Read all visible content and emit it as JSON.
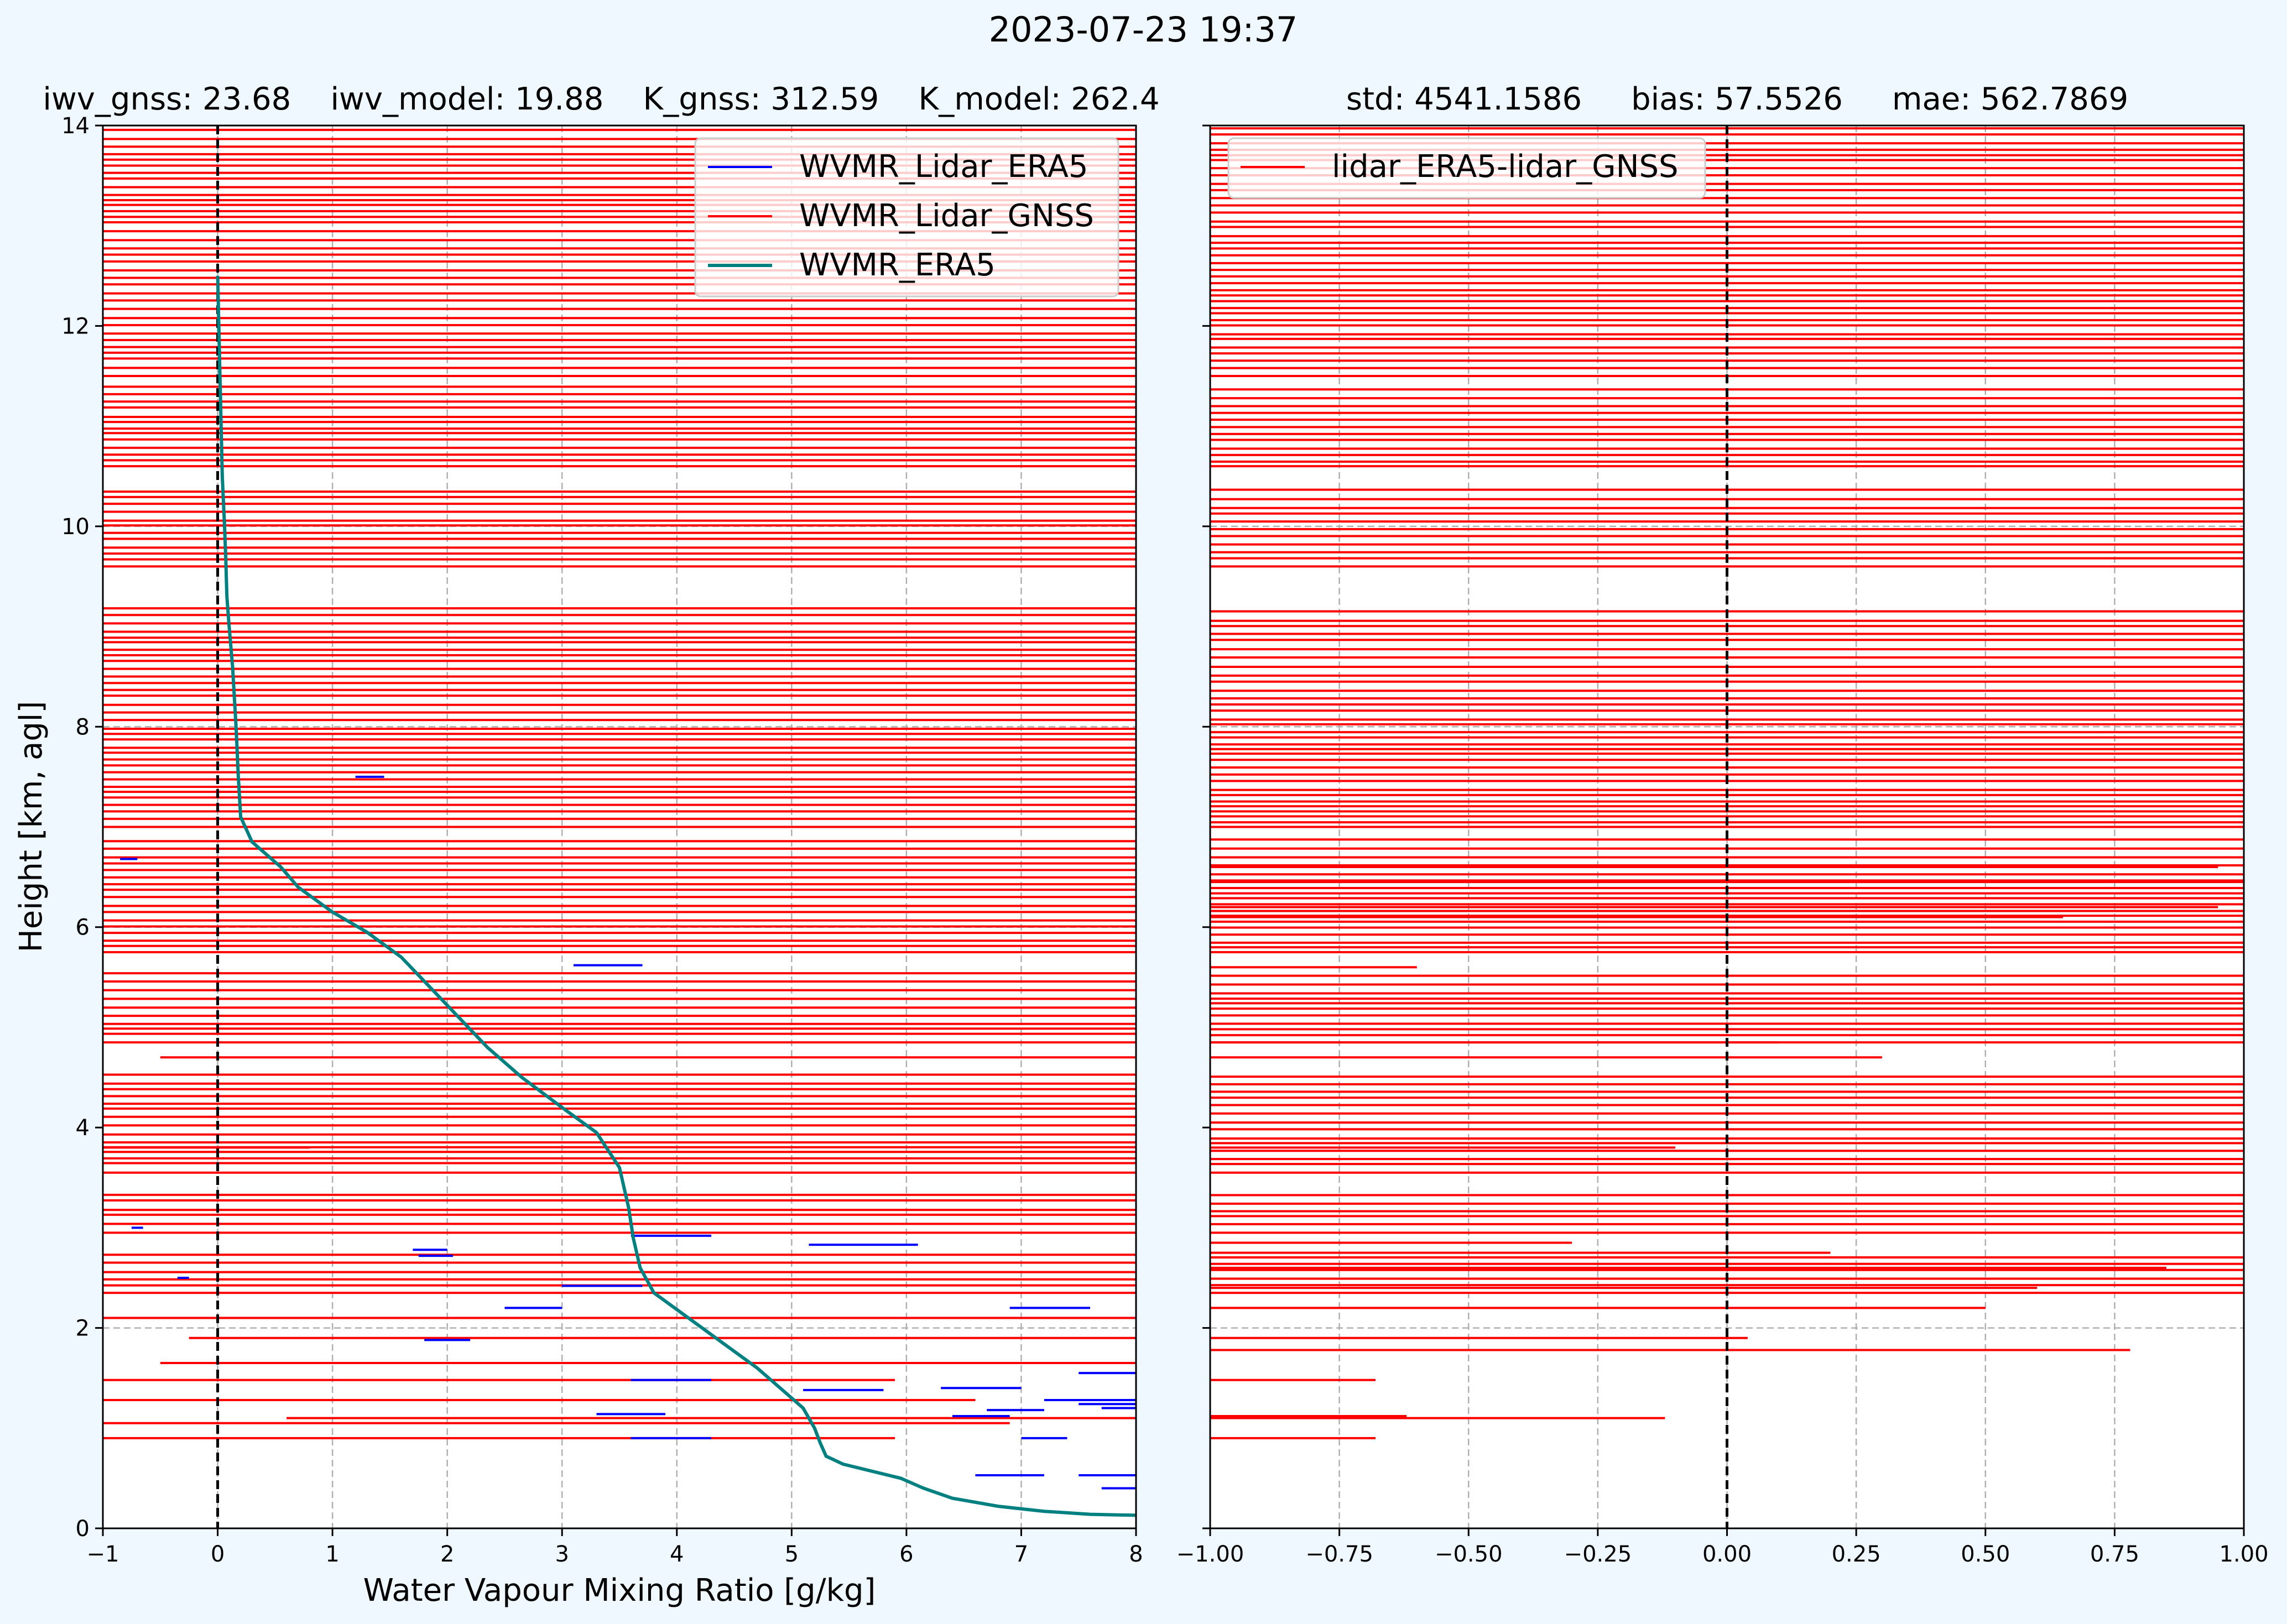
{
  "figure": {
    "title": "2023-07-23 19:37",
    "background": "#f0f8ff"
  },
  "chart_data": [
    {
      "type": "line",
      "panel": "left",
      "stats_title": "iwv_gnss: 23.68    iwv_model: 19.88    K_gnss: 312.59    K_model: 262.4",
      "xlabel": "Water Vapour Mixing Ratio [g/kg]",
      "ylabel": "Height [km, agl]",
      "xlim": [
        -1,
        8
      ],
      "ylim": [
        0,
        14
      ],
      "xticks": [
        "−1",
        "0",
        "1",
        "2",
        "3",
        "4",
        "5",
        "6",
        "7",
        "8"
      ],
      "yticks": [
        "0",
        "2",
        "4",
        "6",
        "8",
        "10",
        "12",
        "14"
      ],
      "grid": "dashed vertical; dashed horizontal at 2, 6, 8, 10 km",
      "zero_line": 0,
      "legend": {
        "position": "upper-right",
        "entries": [
          "WVMR_Lidar_ERA5",
          "WVMR_Lidar_GNSS",
          "WVMR_ERA5"
        ]
      },
      "series": [
        {
          "name": "WVMR_Lidar_ERA5",
          "color": "#0000ff",
          "segments": [
            {
              "y": 7.5,
              "x0": 1.2,
              "x1": 1.45
            },
            {
              "y": 6.68,
              "x0": -0.85,
              "x1": -0.7
            },
            {
              "y": 5.62,
              "x0": 3.1,
              "x1": 3.7
            },
            {
              "y": 3.0,
              "x0": -0.75,
              "x1": -0.65
            },
            {
              "y": 2.92,
              "x0": 3.6,
              "x1": 4.3
            },
            {
              "y": 2.83,
              "x0": 5.15,
              "x1": 6.1
            },
            {
              "y": 2.78,
              "x0": 1.7,
              "x1": 2.0
            },
            {
              "y": 2.72,
              "x0": 1.75,
              "x1": 2.05
            },
            {
              "y": 2.5,
              "x0": -0.35,
              "x1": -0.25
            },
            {
              "y": 2.42,
              "x0": 3.0,
              "x1": 3.7
            },
            {
              "y": 2.2,
              "x0": 2.5,
              "x1": 3.0
            },
            {
              "y": 2.2,
              "x0": 6.9,
              "x1": 7.6
            },
            {
              "y": 1.88,
              "x0": 1.8,
              "x1": 2.2
            },
            {
              "y": 1.55,
              "x0": 7.5,
              "x1": 8.0
            },
            {
              "y": 1.48,
              "x0": 3.6,
              "x1": 4.3
            },
            {
              "y": 1.4,
              "x0": 6.3,
              "x1": 7.0
            },
            {
              "y": 1.38,
              "x0": 5.1,
              "x1": 5.8
            },
            {
              "y": 1.28,
              "x0": 7.2,
              "x1": 8.0
            },
            {
              "y": 1.24,
              "x0": 7.5,
              "x1": 8.0
            },
            {
              "y": 1.2,
              "x0": 7.7,
              "x1": 8.0
            },
            {
              "y": 1.18,
              "x0": 6.7,
              "x1": 7.2
            },
            {
              "y": 1.14,
              "x0": 3.3,
              "x1": 3.9
            },
            {
              "y": 1.12,
              "x0": 6.4,
              "x1": 6.9
            },
            {
              "y": 0.9,
              "x0": 3.6,
              "x1": 4.3
            },
            {
              "y": 0.9,
              "x0": 7.0,
              "x1": 7.4
            },
            {
              "y": 0.53,
              "x0": 6.6,
              "x1": 7.2
            },
            {
              "y": 0.53,
              "x0": 7.5,
              "x1": 8.0
            },
            {
              "y": 0.4,
              "x0": 7.7,
              "x1": 8.0
            }
          ]
        },
        {
          "name": "WVMR_Lidar_GNSS",
          "color": "#ff0000",
          "segments": [
            {
              "y": 4.7,
              "x0": -0.5,
              "x1": 8
            },
            {
              "y": 3.8,
              "x0": -1,
              "x1": 0.8
            },
            {
              "y": 2.1,
              "x0": -1,
              "x1": 8
            },
            {
              "y": 1.9,
              "x0": -0.25,
              "x1": 8
            },
            {
              "y": 1.65,
              "x0": -0.5,
              "x1": 8
            },
            {
              "y": 1.48,
              "x0": -1,
              "x1": 5.9
            },
            {
              "y": 1.28,
              "x0": -1,
              "x1": 6.6
            },
            {
              "y": 1.1,
              "x0": 0.6,
              "x1": 8
            },
            {
              "y": 1.05,
              "x0": -1,
              "x1": 6.9
            },
            {
              "y": 0.9,
              "x0": -1,
              "x1": 5.9
            }
          ]
        },
        {
          "name": "WVMR_ERA5",
          "color": "#008080",
          "points": [
            [
              0.0,
              12.5
            ],
            [
              0.02,
              11.5
            ],
            [
              0.04,
              10.5
            ],
            [
              0.06,
              10.0
            ],
            [
              0.07,
              9.7
            ],
            [
              0.08,
              9.3
            ],
            [
              0.1,
              9.0
            ],
            [
              0.13,
              8.6
            ],
            [
              0.16,
              8.0
            ],
            [
              0.18,
              7.5
            ],
            [
              0.2,
              7.1
            ],
            [
              0.3,
              6.85
            ],
            [
              0.55,
              6.6
            ],
            [
              0.7,
              6.4
            ],
            [
              1.0,
              6.15
            ],
            [
              1.3,
              5.95
            ],
            [
              1.6,
              5.7
            ],
            [
              1.85,
              5.4
            ],
            [
              2.1,
              5.1
            ],
            [
              2.35,
              4.8
            ],
            [
              2.65,
              4.5
            ],
            [
              3.0,
              4.2
            ],
            [
              3.3,
              3.95
            ],
            [
              3.5,
              3.6
            ],
            [
              3.58,
              3.2
            ],
            [
              3.62,
              2.9
            ],
            [
              3.68,
              2.6
            ],
            [
              3.8,
              2.35
            ],
            [
              4.1,
              2.1
            ],
            [
              4.4,
              1.85
            ],
            [
              4.7,
              1.6
            ],
            [
              4.9,
              1.4
            ],
            [
              5.1,
              1.2
            ],
            [
              5.2,
              1.0
            ],
            [
              5.25,
              0.85
            ],
            [
              5.3,
              0.72
            ],
            [
              5.45,
              0.64
            ],
            [
              5.7,
              0.57
            ],
            [
              5.95,
              0.5
            ],
            [
              6.15,
              0.4
            ],
            [
              6.4,
              0.3
            ],
            [
              6.8,
              0.22
            ],
            [
              7.2,
              0.17
            ],
            [
              7.6,
              0.14
            ],
            [
              8.0,
              0.13
            ]
          ]
        }
      ]
    },
    {
      "type": "line",
      "panel": "right",
      "stats_title": "std: 4541.1586     bias: 57.5526     mae: 562.7869",
      "xlim": [
        -1.0,
        1.0
      ],
      "ylim": [
        0,
        14
      ],
      "xticks": [
        "−1.00",
        "−0.75",
        "−0.50",
        "−0.25",
        "0.00",
        "0.25",
        "0.50",
        "0.75",
        "1.00"
      ],
      "grid": "dashed vertical; dashed horizontal at 2, 6, 8, 10 km",
      "zero_line": 0,
      "legend": {
        "position": "upper-left",
        "entries": [
          "lidar_ERA5-lidar_GNSS"
        ]
      },
      "series": [
        {
          "name": "lidar_ERA5-lidar_GNSS",
          "color": "#ff0000",
          "segments": [
            {
              "y": 6.6,
              "x0": -1.0,
              "x1": 0.95
            },
            {
              "y": 6.45,
              "x0": -1.0,
              "x1": 1.0
            },
            {
              "y": 6.2,
              "x0": -1.0,
              "x1": 0.95
            },
            {
              "y": 6.1,
              "x0": -1.0,
              "x1": 0.65
            },
            {
              "y": 5.6,
              "x0": -1.0,
              "x1": -0.6
            },
            {
              "y": 4.85,
              "x0": -1.0,
              "x1": 0.1
            },
            {
              "y": 4.7,
              "x0": -1.0,
              "x1": 0.3
            },
            {
              "y": 3.8,
              "x0": -1.0,
              "x1": -0.1
            },
            {
              "y": 2.85,
              "x0": -1.0,
              "x1": -0.3
            },
            {
              "y": 2.75,
              "x0": -1.0,
              "x1": 0.2
            },
            {
              "y": 2.6,
              "x0": -1.0,
              "x1": 0.85
            },
            {
              "y": 2.4,
              "x0": -1.0,
              "x1": 0.6
            },
            {
              "y": 2.2,
              "x0": -1.0,
              "x1": 0.5
            },
            {
              "y": 1.9,
              "x0": -1.0,
              "x1": 0.04
            },
            {
              "y": 1.78,
              "x0": -1.0,
              "x1": 0.78
            },
            {
              "y": 1.48,
              "x0": -1.0,
              "x1": -0.68
            },
            {
              "y": 1.12,
              "x0": -1.0,
              "x1": -0.62
            },
            {
              "y": 1.1,
              "x0": -1.0,
              "x1": -0.12
            },
            {
              "y": 0.9,
              "x0": -1.0,
              "x1": -0.68
            }
          ]
        }
      ]
    }
  ]
}
